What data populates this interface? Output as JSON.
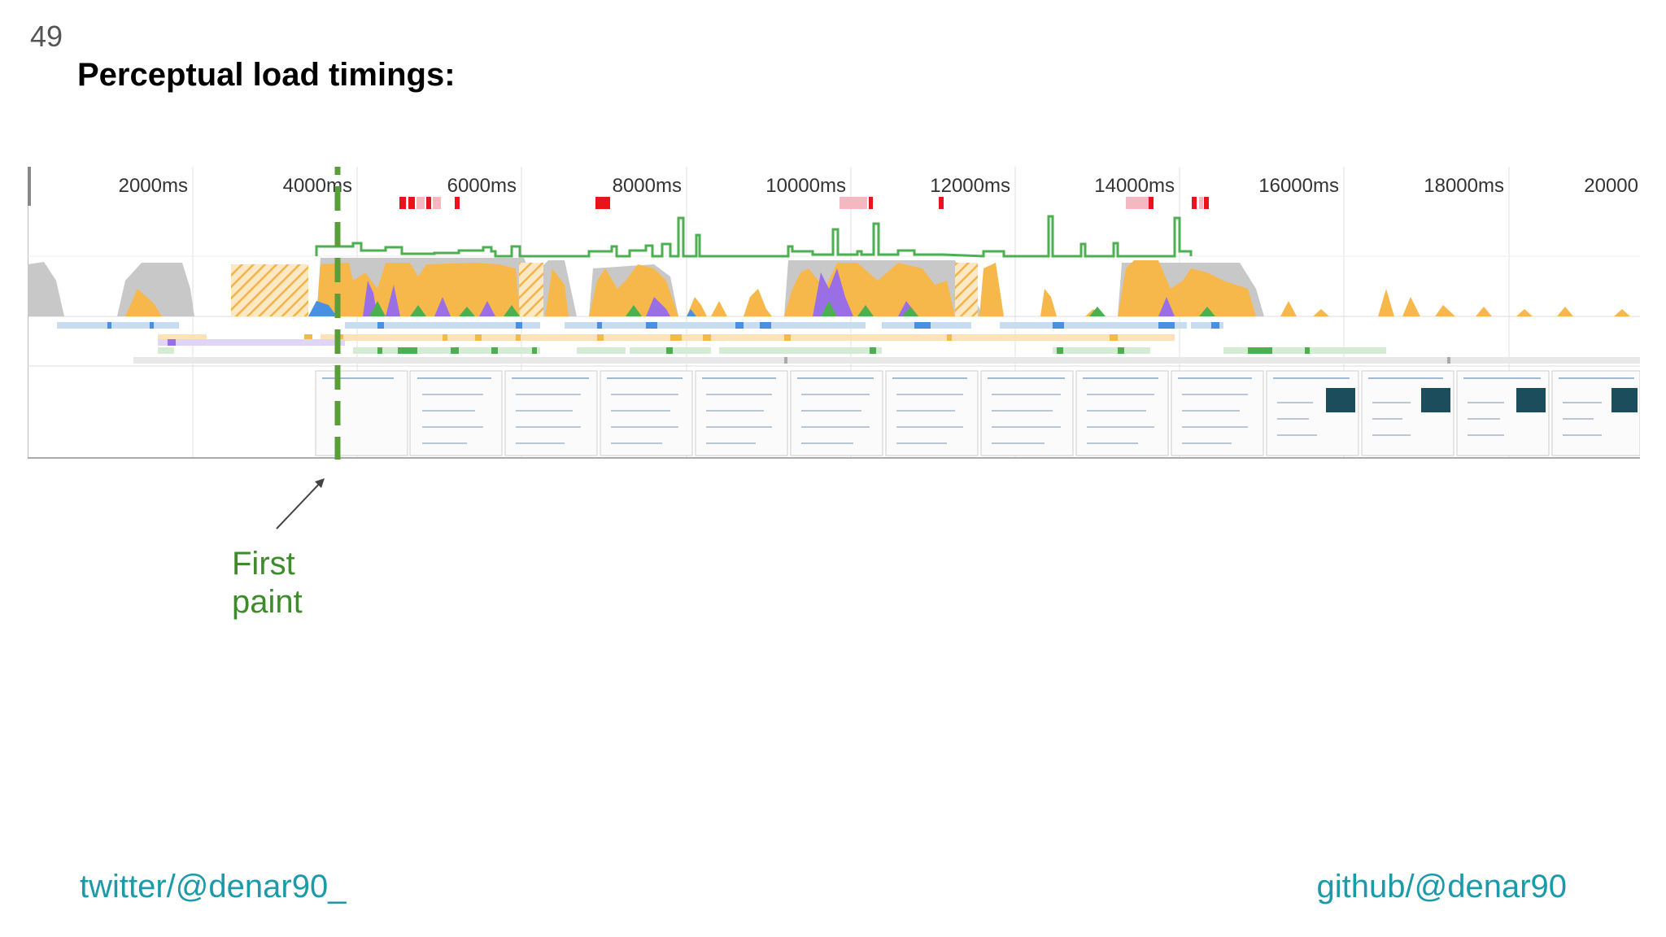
{
  "slide": {
    "number": "49",
    "title": "Perceptual load timings:"
  },
  "timeline": {
    "ticks": [
      "2000ms",
      "4000ms",
      "6000ms",
      "8000ms",
      "10000ms",
      "12000ms",
      "14000ms",
      "16000ms",
      "18000ms",
      "20000"
    ],
    "colors": {
      "scripting": "#f7b84b",
      "rendering": "#9a6fe6",
      "painting": "#4caf50",
      "loading": "#4a90e2",
      "idle": "#c8c8c8",
      "first_paint": "#5a9e3a",
      "frames": "#e8131b",
      "frames_light": "#f6b8c0"
    }
  },
  "annotation": {
    "line1": "First",
    "line2": "paint"
  },
  "footer": {
    "twitter": "twitter/@denar90_",
    "github": "github/@denar90"
  }
}
